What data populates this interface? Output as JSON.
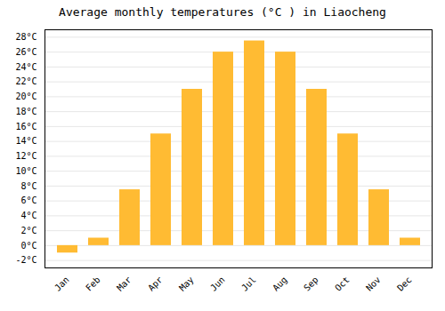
{
  "chart_data": {
    "type": "bar",
    "title": "Average monthly temperatures (°C ) in Liaocheng",
    "categories": [
      "Jan",
      "Feb",
      "Mar",
      "Apr",
      "May",
      "Jun",
      "Jul",
      "Aug",
      "Sep",
      "Oct",
      "Nov",
      "Dec"
    ],
    "values": [
      -1.0,
      1.0,
      7.5,
      15.0,
      21.0,
      26.0,
      27.5,
      26.0,
      21.0,
      15.0,
      7.5,
      1.0
    ],
    "color": "#FFBB33",
    "ylim": [
      -3,
      29
    ],
    "yticks": [
      {
        "value": -2,
        "label": "-2°C"
      },
      {
        "value": 0,
        "label": "0°C"
      },
      {
        "value": 2,
        "label": "2°C"
      },
      {
        "value": 4,
        "label": "4°C"
      },
      {
        "value": 6,
        "label": "6°C"
      },
      {
        "value": 8,
        "label": "8°C"
      },
      {
        "value": 10,
        "label": "10°C"
      },
      {
        "value": 12,
        "label": "12°C"
      },
      {
        "value": 14,
        "label": "14°C"
      },
      {
        "value": 16,
        "label": "16°C"
      },
      {
        "value": 18,
        "label": "18°C"
      },
      {
        "value": 20,
        "label": "20°C"
      },
      {
        "value": 22,
        "label": "22°C"
      },
      {
        "value": 24,
        "label": "24°C"
      },
      {
        "value": 26,
        "label": "26°C"
      },
      {
        "value": 28,
        "label": "28°C"
      }
    ],
    "grid": true
  }
}
